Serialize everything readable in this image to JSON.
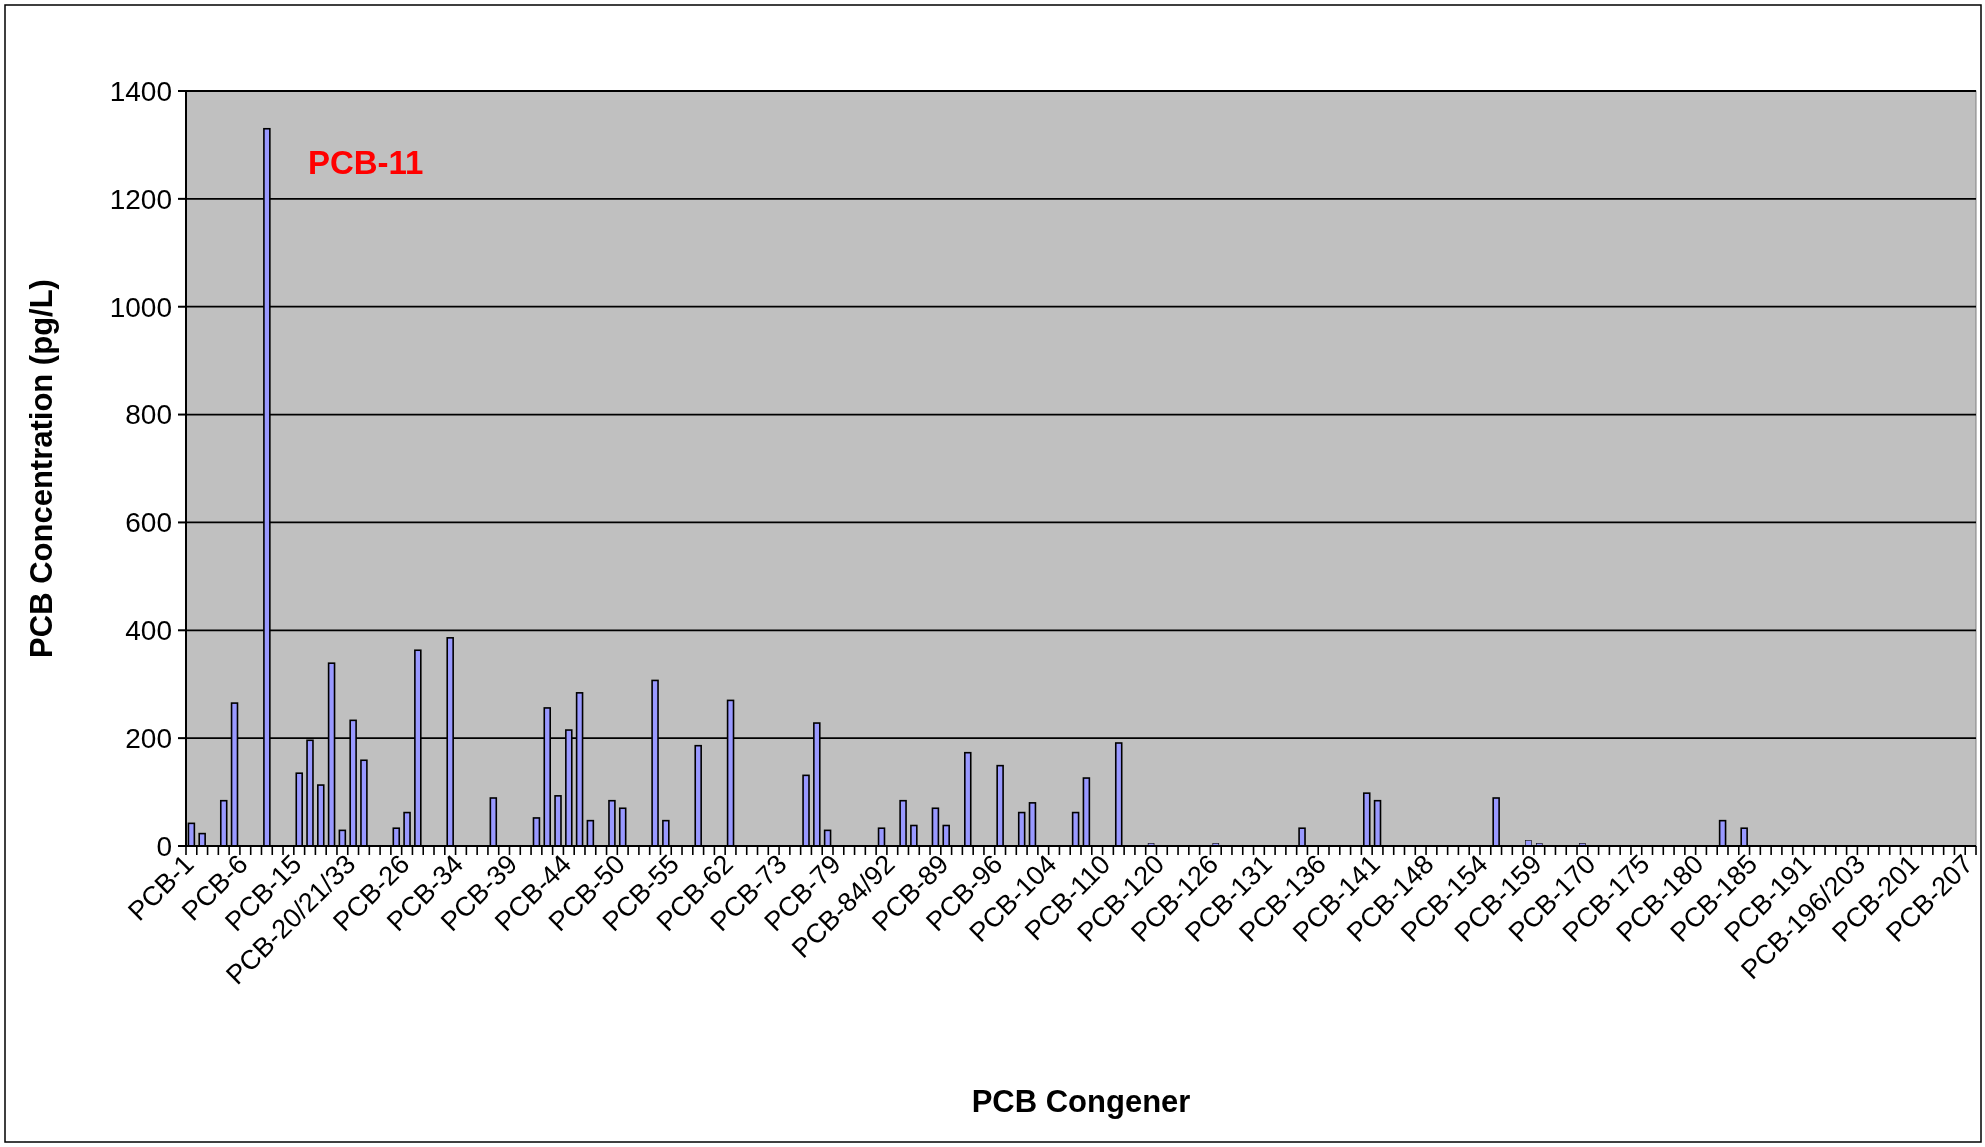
{
  "chart_data": {
    "type": "bar",
    "xlabel": "PCB Congener",
    "ylabel": "PCB Concentration (pg/L)",
    "categories": [
      "PCB-1",
      null,
      null,
      null,
      null,
      "PCB-6",
      null,
      null,
      null,
      null,
      "PCB-15",
      null,
      null,
      null,
      null,
      "PCB-20/21/33",
      null,
      null,
      null,
      null,
      "PCB-26",
      null,
      null,
      null,
      null,
      "PCB-34",
      null,
      null,
      null,
      null,
      "PCB-39",
      null,
      null,
      null,
      null,
      "PCB-44",
      null,
      null,
      null,
      null,
      "PCB-50",
      null,
      null,
      null,
      null,
      "PCB-55",
      null,
      null,
      null,
      null,
      "PCB-62",
      null,
      null,
      null,
      null,
      "PCB-73",
      null,
      null,
      null,
      null,
      "PCB-79",
      null,
      null,
      null,
      null,
      "PCB-84/92",
      null,
      null,
      null,
      null,
      "PCB-89",
      null,
      null,
      null,
      null,
      "PCB-96",
      null,
      null,
      null,
      null,
      "PCB-104",
      null,
      null,
      null,
      null,
      "PCB-110",
      null,
      null,
      null,
      null,
      "PCB-120",
      null,
      null,
      null,
      null,
      "PCB-126",
      null,
      null,
      null,
      null,
      "PCB-131",
      null,
      null,
      null,
      null,
      "PCB-136",
      null,
      null,
      null,
      null,
      "PCB-141",
      null,
      null,
      null,
      null,
      "PCB-148",
      null,
      null,
      null,
      null,
      "PCB-154",
      null,
      null,
      null,
      null,
      "PCB-159",
      null,
      null,
      null,
      null,
      "PCB-170",
      null,
      null,
      null,
      null,
      "PCB-175",
      null,
      null,
      null,
      null,
      "PCB-180",
      null,
      null,
      null,
      null,
      "PCB-185",
      null,
      null,
      null,
      null,
      "PCB-191",
      null,
      null,
      null,
      null,
      "PCB-196/203",
      null,
      null,
      null,
      null,
      "PCB-201",
      null,
      null,
      null,
      null,
      "PCB-207"
    ],
    "values": [
      42,
      23,
      null,
      84,
      265,
      null,
      null,
      1330,
      null,
      null,
      135,
      196,
      113,
      339,
      29,
      233,
      159,
      null,
      null,
      33,
      62,
      363,
      null,
      null,
      386,
      null,
      null,
      null,
      89,
      null,
      null,
      null,
      52,
      256,
      93,
      215,
      284,
      47,
      null,
      84,
      70,
      null,
      null,
      307,
      47,
      null,
      null,
      186,
      null,
      null,
      270,
      null,
      null,
      null,
      null,
      null,
      null,
      131,
      228,
      29,
      null,
      null,
      null,
      null,
      33,
      null,
      84,
      38,
      null,
      70,
      38,
      null,
      173,
      null,
      null,
      149,
      null,
      62,
      80,
      null,
      null,
      null,
      62,
      126,
      null,
      null,
      191,
      null,
      null,
      5,
      null,
      null,
      null,
      null,
      null,
      5,
      null,
      null,
      null,
      null,
      null,
      null,
      null,
      33,
      null,
      null,
      null,
      null,
      null,
      98,
      84,
      null,
      null,
      null,
      null,
      null,
      null,
      null,
      null,
      null,
      null,
      89,
      null,
      null,
      10,
      5,
      null,
      null,
      null,
      5,
      null,
      null,
      null,
      null,
      null,
      null,
      null,
      null,
      null,
      null,
      null,
      null,
      47,
      null,
      33,
      null,
      null,
      null,
      null,
      null,
      null,
      null,
      null,
      null,
      null,
      null,
      null,
      null,
      null,
      null,
      null,
      null,
      null,
      null,
      null,
      null
    ],
    "color": "#9999ff",
    "ylim": [
      0,
      1400
    ],
    "yticks": [
      0,
      200,
      400,
      600,
      800,
      1000,
      1200,
      1400
    ],
    "grid": "y",
    "annotations": [
      "PCB-11"
    ]
  }
}
